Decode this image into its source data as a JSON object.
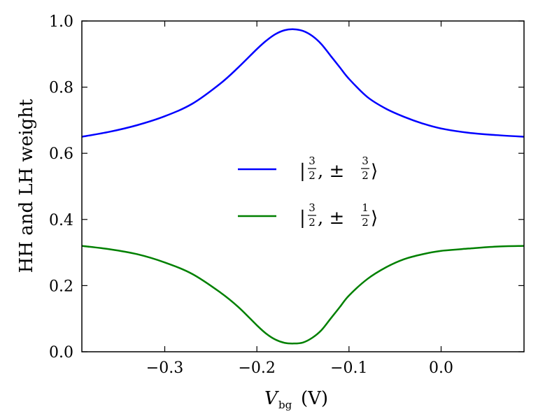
{
  "chart_data": {
    "type": "line",
    "xlabel": "V",
    "xlabel_sub": "bg",
    "xlabel_unit": "(V)",
    "ylabel": "HH and LH weight",
    "xlim": [
      -0.39,
      0.09
    ],
    "ylim": [
      0.0,
      1.0
    ],
    "xticks": [
      -0.3,
      -0.2,
      -0.1,
      0.0
    ],
    "xtick_labels": [
      "−0.3",
      "−0.2",
      "−0.1",
      "0.0"
    ],
    "yticks": [
      0.0,
      0.2,
      0.4,
      0.6,
      0.8,
      1.0
    ],
    "ytick_labels": [
      "0.0",
      "0.2",
      "0.4",
      "0.6",
      "0.8",
      "1.0"
    ],
    "grid": false,
    "legend_position": "center",
    "series": [
      {
        "name": "|3/2, ±3/2⟩",
        "color": "#0000ff",
        "x": [
          -0.39,
          -0.36,
          -0.33,
          -0.3,
          -0.27,
          -0.24,
          -0.22,
          -0.2,
          -0.19,
          -0.18,
          -0.17,
          -0.16,
          -0.15,
          -0.14,
          -0.13,
          -0.12,
          -0.11,
          -0.1,
          -0.08,
          -0.06,
          -0.04,
          -0.02,
          0.0,
          0.03,
          0.06,
          0.09
        ],
        "y": [
          0.65,
          0.665,
          0.685,
          0.712,
          0.75,
          0.81,
          0.86,
          0.915,
          0.94,
          0.96,
          0.972,
          0.975,
          0.97,
          0.955,
          0.93,
          0.895,
          0.86,
          0.825,
          0.77,
          0.735,
          0.71,
          0.69,
          0.675,
          0.662,
          0.655,
          0.65
        ]
      },
      {
        "name": "|3/2, ±1/2⟩",
        "color": "#008000",
        "x": [
          -0.39,
          -0.36,
          -0.33,
          -0.3,
          -0.27,
          -0.24,
          -0.22,
          -0.2,
          -0.19,
          -0.18,
          -0.17,
          -0.16,
          -0.15,
          -0.14,
          -0.13,
          -0.12,
          -0.11,
          -0.1,
          -0.08,
          -0.06,
          -0.04,
          -0.02,
          0.0,
          0.03,
          0.06,
          0.09
        ],
        "y": [
          0.32,
          0.31,
          0.295,
          0.27,
          0.235,
          0.18,
          0.135,
          0.08,
          0.055,
          0.037,
          0.027,
          0.025,
          0.028,
          0.042,
          0.065,
          0.1,
          0.135,
          0.17,
          0.22,
          0.255,
          0.28,
          0.295,
          0.305,
          0.312,
          0.318,
          0.32
        ]
      }
    ],
    "legend": [
      {
        "prefix": "|",
        "frac_num": "3",
        "frac_den": "2",
        "mid": ", ±",
        "frac2_num": "3",
        "frac2_den": "2",
        "suffix": "⟩"
      },
      {
        "prefix": "|",
        "frac_num": "3",
        "frac_den": "2",
        "mid": ", ±",
        "frac2_num": "1",
        "frac2_den": "2",
        "suffix": "⟩"
      }
    ]
  }
}
